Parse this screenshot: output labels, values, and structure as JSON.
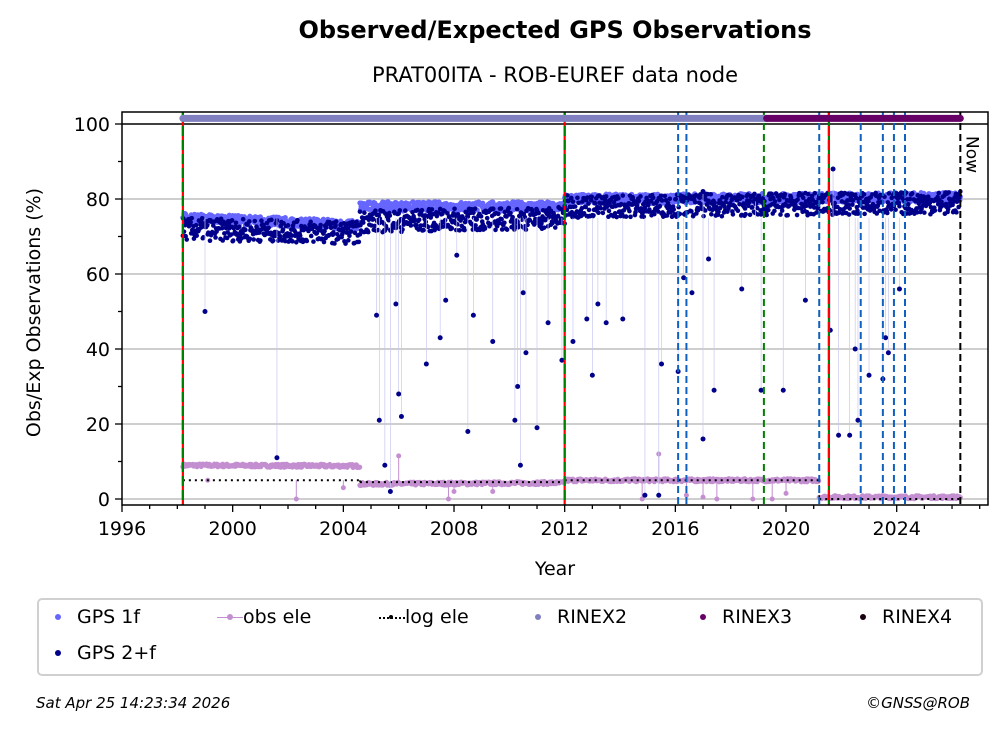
{
  "chart_data": {
    "type": "scatter",
    "title": "Observed/Expected GPS Observations",
    "subtitle": "PRAT00ITA - ROB-EUREF data node",
    "xlabel": "Year",
    "ylabel": "Obs/Exp Observations (%)",
    "xlim": [
      1996,
      2027.3
    ],
    "ylim": [
      -1.6,
      103.2
    ],
    "x_ticks": [
      "1996",
      "2000",
      "2004",
      "2008",
      "2012",
      "2016",
      "2020",
      "2024"
    ],
    "y_ticks": [
      "0",
      "20",
      "40",
      "60",
      "80",
      "100"
    ],
    "grid": "horizontal",
    "legend_placement": "bottom",
    "now_label": "Now",
    "now_year": 2026.3,
    "series": [
      {
        "name": "GPS 1f",
        "color": "#6666ff",
        "levels": [
          [
            1998.2,
            2004.6,
            75,
            73
          ],
          [
            2004.6,
            2012.0,
            78,
            78
          ],
          [
            2012.0,
            2026.3,
            80,
            80.5
          ]
        ]
      },
      {
        "name": "GPS 2+f",
        "color": "#00008b",
        "levels": [
          [
            1998.2,
            2004.6,
            72,
            71
          ],
          [
            2004.6,
            2012.0,
            74,
            75
          ],
          [
            2012.0,
            2026.3,
            78,
            79
          ]
        ],
        "outliers": [
          [
            1999.0,
            50
          ],
          [
            2001.6,
            11
          ],
          [
            2005.2,
            49
          ],
          [
            2005.3,
            21
          ],
          [
            2005.5,
            9
          ],
          [
            2005.7,
            2
          ],
          [
            2005.9,
            52
          ],
          [
            2006.0,
            28
          ],
          [
            2006.1,
            22
          ],
          [
            2007.0,
            36
          ],
          [
            2007.5,
            43
          ],
          [
            2007.7,
            53
          ],
          [
            2008.1,
            65
          ],
          [
            2008.5,
            18
          ],
          [
            2008.7,
            49
          ],
          [
            2009.4,
            42
          ],
          [
            2010.2,
            21
          ],
          [
            2010.3,
            30
          ],
          [
            2010.4,
            9
          ],
          [
            2010.5,
            55
          ],
          [
            2010.6,
            39
          ],
          [
            2011.0,
            19
          ],
          [
            2011.4,
            47
          ],
          [
            2011.9,
            37
          ],
          [
            2012.3,
            42
          ],
          [
            2012.8,
            48
          ],
          [
            2013.0,
            33
          ],
          [
            2013.2,
            52
          ],
          [
            2013.5,
            47
          ],
          [
            2014.1,
            48
          ],
          [
            2014.9,
            1
          ],
          [
            2015.4,
            1
          ],
          [
            2015.5,
            36
          ],
          [
            2016.1,
            34
          ],
          [
            2016.3,
            59
          ],
          [
            2016.6,
            55
          ],
          [
            2017.0,
            16
          ],
          [
            2017.2,
            64
          ],
          [
            2017.4,
            29
          ],
          [
            2018.4,
            56
          ],
          [
            2019.1,
            29
          ],
          [
            2019.9,
            29
          ],
          [
            2020.7,
            53
          ],
          [
            2021.6,
            45
          ],
          [
            2021.7,
            88
          ],
          [
            2021.9,
            17
          ],
          [
            2022.3,
            17
          ],
          [
            2022.5,
            40
          ],
          [
            2022.6,
            21
          ],
          [
            2023.0,
            33
          ],
          [
            2023.5,
            32
          ],
          [
            2023.6,
            43
          ],
          [
            2023.7,
            39
          ],
          [
            2024.1,
            56
          ],
          [
            2017.0,
            82
          ],
          [
            2018.9,
            80
          ]
        ]
      },
      {
        "name": "obs ele",
        "color": "#c38fd0",
        "levels": [
          [
            1998.2,
            2004.6,
            9,
            8.8
          ],
          [
            2004.6,
            2012.0,
            4,
            4.3
          ],
          [
            2012.0,
            2021.2,
            5,
            5
          ],
          [
            2021.2,
            2026.3,
            0.5,
            0.5
          ]
        ],
        "outliers": [
          [
            1999.1,
            5
          ],
          [
            2002.3,
            0
          ],
          [
            2004.0,
            3
          ],
          [
            2006.0,
            11.5
          ],
          [
            2007.8,
            0
          ],
          [
            2008.0,
            2
          ],
          [
            2009.4,
            2
          ],
          [
            2014.8,
            0
          ],
          [
            2015.4,
            12
          ],
          [
            2016.4,
            1
          ],
          [
            2017.0,
            0.5
          ],
          [
            2017.5,
            0
          ],
          [
            2018.8,
            0
          ],
          [
            2019.5,
            0
          ],
          [
            2020.0,
            1.5
          ]
        ]
      },
      {
        "name": "log ele",
        "color": "#000000",
        "levels": [
          [
            1998.2,
            2004.6,
            5,
            5
          ],
          [
            2004.6,
            2012.0,
            4.5,
            4.5
          ],
          [
            2012.0,
            2021.2,
            5,
            5
          ],
          [
            2021.2,
            2026.3,
            0,
            0
          ]
        ]
      },
      {
        "name": "RINEX2",
        "color": "#8080c0",
        "span": [
          1998.2,
          2019.3
        ],
        "y": 101.5
      },
      {
        "name": "RINEX3",
        "color": "#660066",
        "span": [
          2019.3,
          2026.3
        ],
        "y": 101.5
      },
      {
        "name": "RINEX4",
        "color": "#1a0010"
      }
    ],
    "vlines": [
      {
        "x": 1998.2,
        "colors": [
          "#008000",
          "#ff0000"
        ]
      },
      {
        "x": 2012.0,
        "colors": [
          "#008000",
          "#ff0000"
        ]
      },
      {
        "x": 2021.55,
        "colors": [
          "#ff0000",
          "#008000"
        ]
      },
      {
        "x": 2019.2,
        "colors": [
          "#008000"
        ]
      },
      {
        "x": 2016.1,
        "colors": [
          "#1060c0"
        ]
      },
      {
        "x": 2016.4,
        "colors": [
          "#1060c0"
        ]
      },
      {
        "x": 2021.2,
        "colors": [
          "#1060c0"
        ]
      },
      {
        "x": 2022.7,
        "colors": [
          "#1060c0"
        ]
      },
      {
        "x": 2023.5,
        "colors": [
          "#1060c0"
        ]
      },
      {
        "x": 2023.9,
        "colors": [
          "#1060c0"
        ]
      },
      {
        "x": 2024.3,
        "colors": [
          "#1060c0"
        ]
      },
      {
        "x": 2026.3,
        "colors": [
          "#000000"
        ]
      }
    ]
  },
  "legend": {
    "gps1f": "GPS 1f",
    "gps2f": "GPS 2+f",
    "obs_ele": "obs ele",
    "log_ele": "log ele",
    "rinex2": "RINEX2",
    "rinex3": "RINEX3",
    "rinex4": "RINEX4"
  },
  "footer": {
    "timestamp": "Sat Apr 25 14:23:34 2026",
    "credit": "©GNSS@ROB"
  }
}
